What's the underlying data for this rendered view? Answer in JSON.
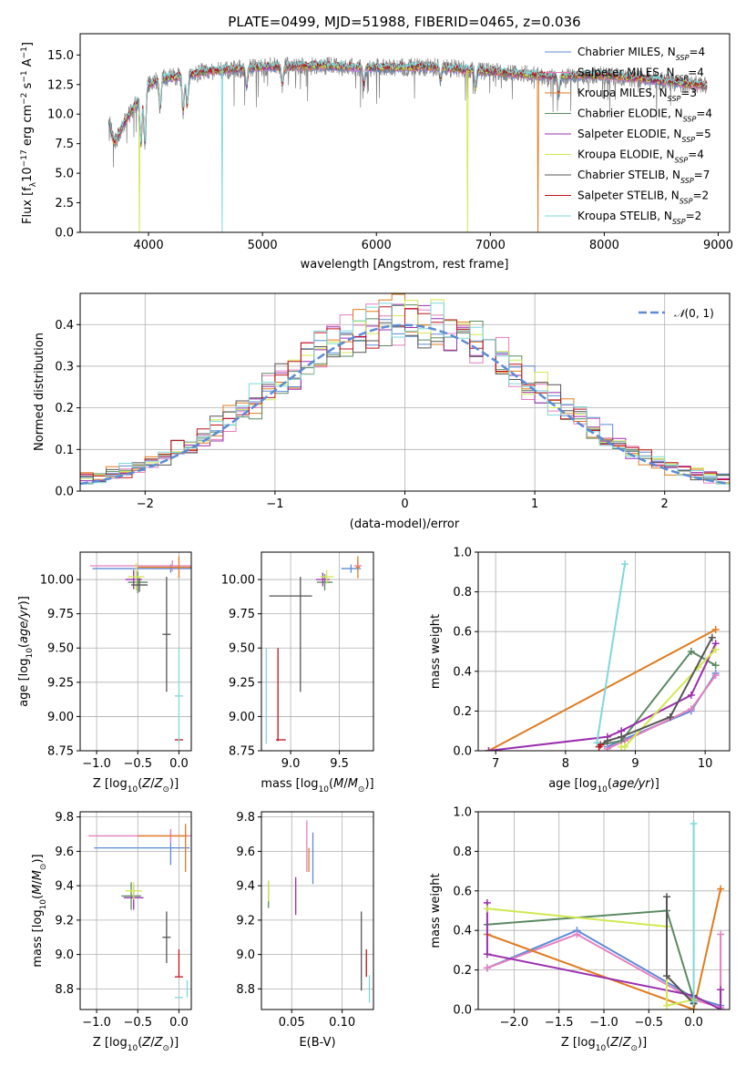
{
  "colors": {
    "chabrier_miles": "#5b8bd6",
    "salpeter_miles": "#e57fbf",
    "kroupa_miles": "#e07b1f",
    "chabrier_elodie": "#5a8a62",
    "salpeter_elodie": "#9a2fae",
    "kroupa_elodie": "#d2e84f",
    "chabrier_stelib": "#555555",
    "salpeter_stelib": "#c0141c",
    "kroupa_stelib": "#7fd8da"
  },
  "chart_data": [
    {
      "id": "spectrum",
      "type": "line",
      "title": "PLATE=0499, MJD=51988, FIBERID=0465, z=0.036",
      "xlabel": "wavelength [Angstrom, rest frame]",
      "ylabel": "Flux [f_λ10^-17 erg cm^-2 s^-1 A^-1]",
      "xlim": [
        3400,
        9100
      ],
      "ylim": [
        0,
        16.8
      ],
      "xticks": [
        4000,
        5000,
        6000,
        7000,
        8000,
        9000
      ],
      "yticks": [
        0.0,
        2.5,
        5.0,
        7.5,
        10.0,
        12.5,
        15.0
      ],
      "legend_position": "top-right",
      "legend": [
        {
          "pre": "Chabrier MILES, N",
          "sub": "SSP",
          "post": "=4",
          "color_key": "chabrier_miles"
        },
        {
          "pre": "Salpeter MILES, N",
          "sub": "SSP",
          "post": "=4",
          "color_key": "salpeter_miles"
        },
        {
          "pre": "Kroupa MILES, N",
          "sub": "SSP",
          "post": "=3",
          "color_key": "kroupa_miles"
        },
        {
          "pre": "Chabrier ELODIE, N",
          "sub": "SSP",
          "post": "=4",
          "color_key": "chabrier_elodie"
        },
        {
          "pre": "Salpeter ELODIE, N",
          "sub": "SSP",
          "post": "=5",
          "color_key": "salpeter_elodie"
        },
        {
          "pre": "Kroupa ELODIE, N",
          "sub": "SSP",
          "post": "=4",
          "color_key": "kroupa_elodie"
        },
        {
          "pre": "Chabrier STELIB, N",
          "sub": "SSP",
          "post": "=7",
          "color_key": "chabrier_stelib"
        },
        {
          "pre": "Salpeter STELIB, N",
          "sub": "SSP",
          "post": "=2",
          "color_key": "salpeter_stelib"
        },
        {
          "pre": "Kroupa STELIB, N",
          "sub": "SSP",
          "post": "=2",
          "color_key": "kroupa_stelib"
        }
      ],
      "continuum": [
        [
          3650,
          9.5
        ],
        [
          3700,
          7.5
        ],
        [
          3750,
          8.5
        ],
        [
          3800,
          9.5
        ],
        [
          3900,
          11.0
        ],
        [
          4000,
          12.5
        ],
        [
          4100,
          13.0
        ],
        [
          4300,
          13.2
        ],
        [
          4500,
          13.6
        ],
        [
          5000,
          14.0
        ],
        [
          5500,
          14.1
        ],
        [
          6000,
          13.9
        ],
        [
          6500,
          14.0
        ],
        [
          7000,
          13.6
        ],
        [
          7500,
          13.2
        ],
        [
          8000,
          13.3
        ],
        [
          8500,
          12.8
        ],
        [
          8900,
          12.4
        ]
      ],
      "absorption": [
        [
          3934,
          4.0
        ],
        [
          3969,
          4.5
        ],
        [
          4102,
          2.5
        ],
        [
          4304,
          3.0
        ],
        [
          4340,
          2.5
        ],
        [
          4861,
          1.5
        ],
        [
          5175,
          1.5
        ],
        [
          5890,
          1.5
        ],
        [
          6563,
          1.0
        ],
        [
          6870,
          1.5
        ],
        [
          7600,
          1.5
        ]
      ],
      "dropouts": [
        [
          4645,
          "kroupa_stelib"
        ],
        [
          6800,
          "kroupa_elodie"
        ],
        [
          7420,
          "kroupa_miles"
        ],
        [
          3920,
          "kroupa_elodie"
        ]
      ]
    },
    {
      "id": "residual-histogram",
      "type": "line",
      "xlabel": "(data-model)/error",
      "ylabel": "Normed distribution",
      "xlim": [
        -2.5,
        2.5
      ],
      "ylim": [
        0,
        0.475
      ],
      "xticks": [
        -2,
        -1,
        0,
        1,
        2
      ],
      "yticks": [
        0.0,
        0.1,
        0.2,
        0.3,
        0.4
      ],
      "grid": true,
      "bin_width": 0.1,
      "legend_position": "top-right",
      "reference_curve": {
        "label": "N(0,1)",
        "color_key": "chabrier_miles",
        "style": "dashed"
      }
    },
    {
      "id": "age-vs-Z",
      "type": "scatter",
      "xlabel": "Z [log10(Z/Z⊙)]",
      "ylabel": "age [log10(age/yr)]",
      "xlim": [
        -1.2,
        0.15
      ],
      "ylim": [
        8.75,
        10.2
      ],
      "xticks": [
        -1.0,
        -0.5,
        0.0
      ],
      "yticks": [
        8.75,
        9.0,
        9.25,
        9.5,
        9.75,
        10.0
      ],
      "grid": true,
      "points": [
        {
          "c": "chabrier_miles",
          "x": -0.1,
          "y": 10.08,
          "xe": 0.95,
          "ye": 0.03
        },
        {
          "c": "salpeter_miles",
          "x": -0.08,
          "y": 10.1,
          "xe": 1.0,
          "ye": 0.04
        },
        {
          "c": "kroupa_miles",
          "x": 0.0,
          "y": 10.09,
          "xe": 0.5,
          "ye": 0.08
        },
        {
          "c": "chabrier_elodie",
          "x": -0.5,
          "y": 9.98,
          "xe": 0.12,
          "ye": 0.08
        },
        {
          "c": "salpeter_elodie",
          "x": -0.55,
          "y": 10.0,
          "xe": 0.1,
          "ye": 0.07
        },
        {
          "c": "kroupa_elodie",
          "x": -0.52,
          "y": 10.02,
          "xe": 0.1,
          "ye": 0.1
        },
        {
          "c": "chabrier_stelib",
          "x": -0.15,
          "y": 9.6,
          "xe": 0.05,
          "ye": 0.42
        },
        {
          "c": "chabrier_stelib",
          "x": -0.48,
          "y": 9.96,
          "xe": 0.1,
          "ye": 0.05
        },
        {
          "c": "salpeter_stelib",
          "x": 0.0,
          "y": 8.83,
          "xe": 0.05,
          "ye": 0.0
        },
        {
          "c": "kroupa_stelib",
          "x": 0.0,
          "y": 9.15,
          "xe": 0.05,
          "ye": 0.35
        }
      ]
    },
    {
      "id": "age-vs-mass",
      "type": "scatter",
      "xlabel": "mass [log10(M/M⊙)]",
      "ylabel": "",
      "xlim": [
        8.7,
        9.85
      ],
      "ylim": [
        8.75,
        10.2
      ],
      "xticks": [
        9.0,
        9.5
      ],
      "yticks": [
        8.75,
        9.0,
        9.25,
        9.5,
        9.75,
        10.0
      ],
      "grid": true,
      "points": [
        {
          "c": "chabrier_miles",
          "x": 9.62,
          "y": 10.08,
          "xe": 0.1,
          "ye": 0.03
        },
        {
          "c": "salpeter_miles",
          "x": 9.69,
          "y": 10.1,
          "xe": 0.04,
          "ye": 0.04
        },
        {
          "c": "kroupa_miles",
          "x": 9.69,
          "y": 10.09,
          "xe": 0.02,
          "ye": 0.08
        },
        {
          "c": "chabrier_elodie",
          "x": 9.35,
          "y": 9.98,
          "xe": 0.08,
          "ye": 0.06
        },
        {
          "c": "salpeter_elodie",
          "x": 9.33,
          "y": 10.0,
          "xe": 0.07,
          "ye": 0.05
        },
        {
          "c": "kroupa_elodie",
          "x": 9.37,
          "y": 10.02,
          "xe": 0.07,
          "ye": 0.05
        },
        {
          "c": "chabrier_stelib",
          "x": 9.1,
          "y": 9.6,
          "xe": 0.0,
          "ye": 0.42
        },
        {
          "c": "chabrier_stelib",
          "x": 9.0,
          "y": 9.88,
          "xe": 0.22,
          "ye": 0.0
        },
        {
          "c": "salpeter_stelib",
          "x": 8.87,
          "y": 9.16,
          "xe": 0.0,
          "ye": 0.34
        },
        {
          "c": "salpeter_stelib",
          "x": 8.9,
          "y": 8.83,
          "xe": 0.05,
          "ye": 0.0
        },
        {
          "c": "kroupa_stelib",
          "x": 8.75,
          "y": 9.15,
          "xe": 0.0,
          "ye": 0.35
        }
      ]
    },
    {
      "id": "weight-vs-age",
      "type": "line",
      "xlabel": "age [log10(age/yr)]",
      "ylabel": "mass weight",
      "xlim": [
        6.75,
        10.35
      ],
      "ylim": [
        0,
        1.0
      ],
      "xticks": [
        7,
        8,
        9,
        10
      ],
      "yticks": [
        0.0,
        0.2,
        0.4,
        0.6,
        0.8,
        1.0
      ],
      "grid": true,
      "series": [
        {
          "c": "chabrier_miles",
          "x": [
            8.6,
            8.85,
            9.8,
            10.15
          ],
          "y": [
            0.02,
            0.06,
            0.2,
            0.39
          ]
        },
        {
          "c": "salpeter_miles",
          "x": [
            8.6,
            8.85,
            9.8,
            10.15
          ],
          "y": [
            0.01,
            0.05,
            0.21,
            0.38
          ]
        },
        {
          "c": "kroupa_miles",
          "x": [
            6.9,
            10.15
          ],
          "y": [
            0.0,
            0.61
          ]
        },
        {
          "c": "chabrier_elodie",
          "x": [
            8.5,
            8.8,
            9.8,
            10.15
          ],
          "y": [
            0.03,
            0.05,
            0.5,
            0.43
          ]
        },
        {
          "c": "salpeter_elodie",
          "x": [
            6.9,
            8.6,
            8.8,
            9.8,
            10.15
          ],
          "y": [
            0.0,
            0.07,
            0.1,
            0.28,
            0.54
          ]
        },
        {
          "c": "kroupa_elodie",
          "x": [
            8.8,
            8.85,
            9.9,
            10.15
          ],
          "y": [
            0.02,
            0.02,
            0.42,
            0.51
          ]
        },
        {
          "c": "chabrier_stelib",
          "x": [
            8.5,
            8.6,
            8.8,
            9.5,
            10.1
          ],
          "y": [
            0.03,
            0.05,
            0.07,
            0.17,
            0.57
          ]
        },
        {
          "c": "salpeter_stelib",
          "x": [
            8.48,
            8.5
          ],
          "y": [
            0.02,
            0.03
          ]
        },
        {
          "c": "kroupa_stelib",
          "x": [
            8.45,
            8.85
          ],
          "y": [
            0.04,
            0.94
          ]
        }
      ]
    },
    {
      "id": "mass-vs-Z",
      "type": "scatter",
      "xlabel": "Z [log10(Z/Z⊙)]",
      "ylabel": "mass [log10(M/M⊙)]",
      "xlim": [
        -1.2,
        0.15
      ],
      "ylim": [
        8.68,
        9.83
      ],
      "xticks": [
        -1.0,
        -0.5,
        0.0
      ],
      "yticks": [
        8.8,
        9.0,
        9.2,
        9.4,
        9.6,
        9.8
      ],
      "grid": true,
      "points": [
        {
          "c": "chabrier_miles",
          "x": -0.45,
          "y": 9.62,
          "xe": 0.58,
          "ye": 0.0
        },
        {
          "c": "chabrier_miles",
          "x": -0.1,
          "y": 9.62,
          "xe": 0.0,
          "ye": 0.1
        },
        {
          "c": "salpeter_miles",
          "x": -0.45,
          "y": 9.69,
          "xe": 0.65,
          "ye": 0.0
        },
        {
          "c": "salpeter_miles",
          "x": -0.1,
          "y": 9.69,
          "xe": 0.0,
          "ye": 0.04
        },
        {
          "c": "kroupa_miles",
          "x": -0.2,
          "y": 9.69,
          "xe": 0.3,
          "ye": 0.0
        },
        {
          "c": "kroupa_miles",
          "x": 0.08,
          "y": 9.62,
          "xe": 0.0,
          "ye": 0.14
        },
        {
          "c": "chabrier_elodie",
          "x": -0.58,
          "y": 9.34,
          "xe": 0.12,
          "ye": 0.08
        },
        {
          "c": "salpeter_elodie",
          "x": -0.55,
          "y": 9.33,
          "xe": 0.12,
          "ye": 0.07
        },
        {
          "c": "kroupa_elodie",
          "x": -0.55,
          "y": 9.37,
          "xe": 0.1,
          "ye": 0.05
        },
        {
          "c": "chabrier_stelib",
          "x": -0.15,
          "y": 9.1,
          "xe": 0.05,
          "ye": 0.15
        },
        {
          "c": "salpeter_stelib",
          "x": 0.0,
          "y": 8.87,
          "xe": 0.05,
          "ye": 0.0
        },
        {
          "c": "salpeter_stelib",
          "x": 0.0,
          "y": 8.95,
          "xe": 0.0,
          "ye": 0.08
        },
        {
          "c": "kroupa_stelib",
          "x": 0.0,
          "y": 8.75,
          "xe": 0.05,
          "ye": 0.0
        },
        {
          "c": "kroupa_stelib",
          "x": 0.1,
          "y": 8.8,
          "xe": 0.0,
          "ye": 0.05
        }
      ]
    },
    {
      "id": "mass-vs-EBV",
      "type": "scatter",
      "xlabel": "E(B-V)",
      "ylabel": "",
      "xlim": [
        0.02,
        0.131
      ],
      "ylim": [
        8.68,
        9.83
      ],
      "xticks": [
        0.05,
        0.1
      ],
      "yticks": [
        8.8,
        9.0,
        9.2,
        9.4,
        9.6,
        9.8
      ],
      "grid": true,
      "points": [
        {
          "c": "chabrier_miles",
          "x": 0.071,
          "y": 9.56,
          "xe": 0.0,
          "ye": 0.15
        },
        {
          "c": "salpeter_miles",
          "x": 0.065,
          "y": 9.63,
          "xe": 0.0,
          "ye": 0.15
        },
        {
          "c": "kroupa_miles",
          "x": 0.067,
          "y": 9.55,
          "xe": 0.0,
          "ye": 0.07
        },
        {
          "c": "chabrier_elodie",
          "x": 0.027,
          "y": 9.35,
          "xe": 0.0,
          "ye": 0.08
        },
        {
          "c": "salpeter_elodie",
          "x": 0.054,
          "y": 9.34,
          "xe": 0.0,
          "ye": 0.11
        },
        {
          "c": "kroupa_elodie",
          "x": 0.027,
          "y": 9.37,
          "xe": 0.0,
          "ye": 0.06
        },
        {
          "c": "chabrier_stelib",
          "x": 0.119,
          "y": 9.02,
          "xe": 0.0,
          "ye": 0.23
        },
        {
          "c": "salpeter_stelib",
          "x": 0.124,
          "y": 8.95,
          "xe": 0.0,
          "ye": 0.08
        },
        {
          "c": "kroupa_stelib",
          "x": 0.127,
          "y": 8.8,
          "xe": 0.0,
          "ye": 0.08
        }
      ]
    },
    {
      "id": "weight-vs-Z",
      "type": "line",
      "xlabel": "Z [log10(Z/Z⊙)]",
      "ylabel": "mass weight",
      "xlim": [
        -2.4,
        0.4
      ],
      "ylim": [
        0,
        1.0
      ],
      "xticks": [
        -2.0,
        -1.5,
        -1.0,
        -0.5,
        0.0
      ],
      "yticks": [
        0.0,
        0.2,
        0.4,
        0.6,
        0.8,
        1.0
      ],
      "grid": true,
      "series": [
        {
          "c": "chabrier_miles",
          "x": [
            -2.3,
            -1.3,
            0.0,
            0.3
          ],
          "y": [
            0.21,
            0.4,
            0.06,
            0.02
          ]
        },
        {
          "c": "salpeter_miles",
          "x": [
            -2.3,
            -1.3,
            0.0,
            0.3,
            0.3
          ],
          "y": [
            0.21,
            0.38,
            0.05,
            0.01,
            0.38
          ]
        },
        {
          "c": "kroupa_miles",
          "x": [
            -2.3,
            0.0,
            0.3
          ],
          "y": [
            0.38,
            0.0,
            0.61
          ]
        },
        {
          "c": "chabrier_elodie",
          "x": [
            -2.3,
            -0.3,
            0.0,
            0.0
          ],
          "y": [
            0.43,
            0.5,
            0.05,
            0.03
          ]
        },
        {
          "c": "salpeter_elodie",
          "x": [
            -2.3,
            -2.3,
            0.0,
            0.3,
            0.3
          ],
          "y": [
            0.54,
            0.28,
            0.07,
            0.0,
            0.1
          ]
        },
        {
          "c": "kroupa_elodie",
          "x": [
            -2.3,
            -0.3,
            -0.3,
            0.0
          ],
          "y": [
            0.51,
            0.42,
            0.02,
            0.05
          ]
        },
        {
          "c": "chabrier_stelib",
          "x": [
            -0.3,
            -0.3,
            0.0,
            0.0
          ],
          "y": [
            0.57,
            0.17,
            0.03,
            0.07
          ]
        },
        {
          "c": "kroupa_stelib",
          "x": [
            0.0,
            0.0
          ],
          "y": [
            0.04,
            0.94
          ]
        }
      ]
    }
  ]
}
